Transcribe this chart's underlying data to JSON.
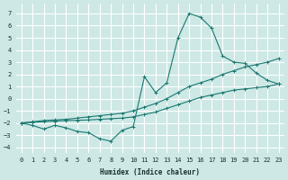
{
  "xlabel": "Humidex (Indice chaleur)",
  "xlim": [
    -0.5,
    23.5
  ],
  "ylim": [
    -4.5,
    7.8
  ],
  "xticks": [
    0,
    1,
    2,
    3,
    4,
    5,
    6,
    7,
    8,
    9,
    10,
    11,
    12,
    13,
    14,
    15,
    16,
    17,
    18,
    19,
    20,
    21,
    22,
    23
  ],
  "yticks": [
    -4,
    -3,
    -2,
    -1,
    0,
    1,
    2,
    3,
    4,
    5,
    6,
    7
  ],
  "background_color": "#cde8e5",
  "grid_color": "#ffffff",
  "line_color": "#1a7870",
  "lines": [
    {
      "x": [
        0,
        1,
        2,
        3,
        4,
        5,
        6,
        7,
        8,
        9,
        10,
        11,
        12,
        13,
        14,
        15,
        16,
        17,
        18,
        19,
        20,
        21,
        22,
        23
      ],
      "y": [
        -2.0,
        -2.2,
        -2.5,
        -2.2,
        -2.4,
        -2.7,
        -2.8,
        -3.3,
        -3.5,
        -2.6,
        -2.3,
        1.8,
        0.5,
        1.3,
        5.0,
        7.0,
        6.7,
        5.8,
        3.5,
        3.0,
        2.9,
        2.1,
        1.5,
        1.2
      ]
    },
    {
      "x": [
        0,
        1,
        2,
        3,
        4,
        5,
        6,
        7,
        8,
        9,
        10,
        11,
        12,
        13,
        14,
        15,
        16,
        17,
        18,
        19,
        20,
        21,
        22,
        23
      ],
      "y": [
        -2.0,
        -1.9,
        -1.8,
        -1.75,
        -1.7,
        -1.6,
        -1.5,
        -1.4,
        -1.3,
        -1.2,
        -1.0,
        -0.7,
        -0.4,
        0.0,
        0.5,
        1.0,
        1.3,
        1.6,
        2.0,
        2.3,
        2.6,
        2.8,
        3.0,
        3.3
      ]
    },
    {
      "x": [
        0,
        1,
        2,
        3,
        4,
        5,
        6,
        7,
        8,
        9,
        10,
        11,
        12,
        13,
        14,
        15,
        16,
        17,
        18,
        19,
        20,
        21,
        22,
        23
      ],
      "y": [
        -2.0,
        -1.95,
        -1.9,
        -1.85,
        -1.8,
        -1.78,
        -1.75,
        -1.7,
        -1.65,
        -1.6,
        -1.5,
        -1.3,
        -1.1,
        -0.8,
        -0.5,
        -0.2,
        0.1,
        0.3,
        0.5,
        0.7,
        0.8,
        0.9,
        1.0,
        1.2
      ]
    }
  ]
}
